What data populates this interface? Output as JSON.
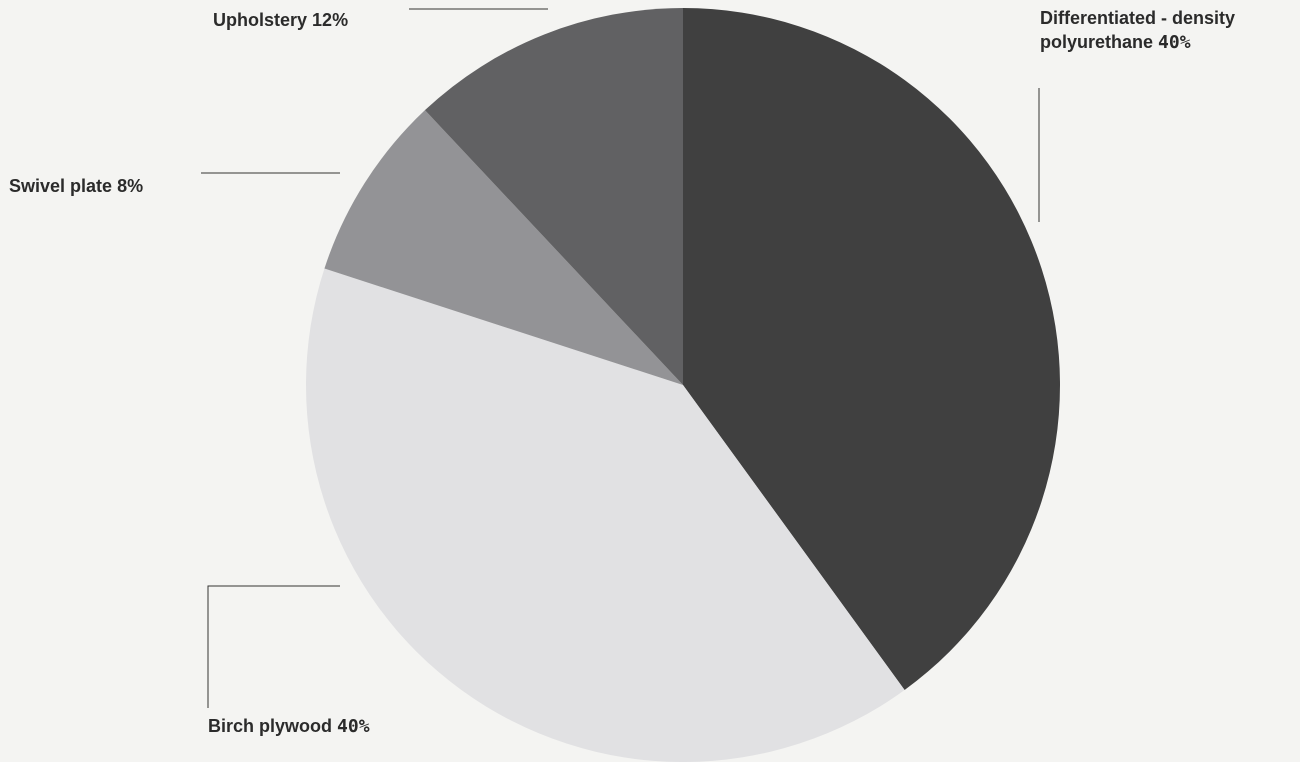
{
  "chart_data": {
    "type": "pie",
    "slices": [
      {
        "label": "Differentiated - density polyurethane",
        "value": 40,
        "value_text": "40%",
        "color": "#404040"
      },
      {
        "label": "Birch plywood",
        "value": 40,
        "value_text": "40%",
        "color": "#e1e1e3"
      },
      {
        "label": "Swivel plate",
        "value": 8,
        "value_text": "8%",
        "color": "#939396"
      },
      {
        "label": "Upholstery",
        "value": 12,
        "value_text": "12%",
        "color": "#616163"
      }
    ],
    "start_angle_deg": 0,
    "direction": "clockwise",
    "background": "#f4f4f2",
    "leader_color": "#333333"
  }
}
